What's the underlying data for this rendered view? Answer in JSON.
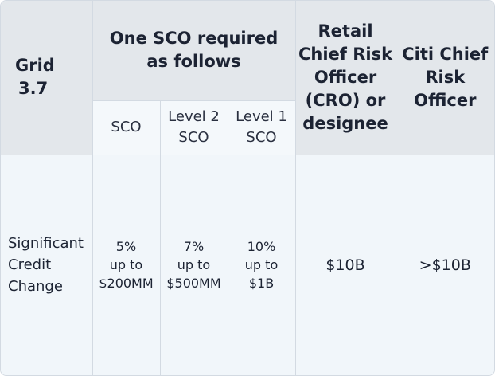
{
  "table": {
    "header": {
      "grid": [
        "Grid",
        "3.7"
      ],
      "sco_group": [
        "One SCO required",
        "as follows"
      ],
      "retail_cro": [
        "Retail",
        "Chief Risk",
        "Officer",
        "(CRO) or",
        "designee"
      ],
      "citi_cro": [
        "Citi Chief",
        "Risk",
        "Officer"
      ]
    },
    "subheader": {
      "sco": [
        "SCO"
      ],
      "level2": [
        "Level 2",
        "SCO"
      ],
      "level1": [
        "Level 1",
        "SCO"
      ]
    },
    "row": {
      "label": [
        "Significant",
        "Credit",
        "Change"
      ],
      "sco": [
        "5%",
        "up to",
        "$200MM"
      ],
      "level2": [
        "7%",
        "up to",
        "$500MM"
      ],
      "level1": [
        "10%",
        "up to",
        "$1B"
      ],
      "retail_cro": [
        "$10B"
      ],
      "citi_cro": [
        ">$10B"
      ]
    }
  }
}
